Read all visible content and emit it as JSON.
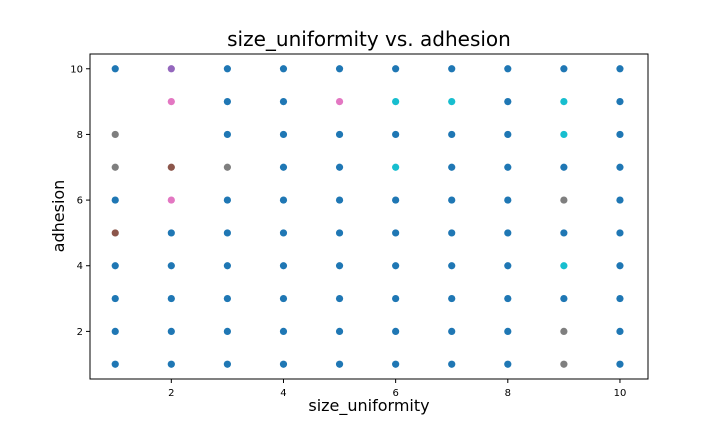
{
  "chart_data": {
    "type": "scatter",
    "title": "size_uniformity vs. adhesion",
    "xlabel": "size_uniformity",
    "ylabel": "adhesion",
    "xlim": [
      0.55,
      10.5
    ],
    "ylim": [
      0.55,
      10.45
    ],
    "xticks": [
      2,
      4,
      6,
      8,
      10
    ],
    "yticks": [
      2,
      4,
      6,
      8,
      10
    ],
    "grid": false,
    "legend": "none",
    "default_color": "#1f77b4",
    "points": [
      {
        "x": 1,
        "y": 1,
        "color": "#1f77b4"
      },
      {
        "x": 1,
        "y": 2,
        "color": "#1f77b4"
      },
      {
        "x": 1,
        "y": 3,
        "color": "#1f77b4"
      },
      {
        "x": 1,
        "y": 4,
        "color": "#1f77b4"
      },
      {
        "x": 1,
        "y": 5,
        "color": "#8c564b"
      },
      {
        "x": 1,
        "y": 6,
        "color": "#1f77b4"
      },
      {
        "x": 1,
        "y": 7,
        "color": "#7f7f7f"
      },
      {
        "x": 1,
        "y": 8,
        "color": "#7f7f7f"
      },
      {
        "x": 1,
        "y": 10,
        "color": "#1f77b4"
      },
      {
        "x": 2,
        "y": 1,
        "color": "#1f77b4"
      },
      {
        "x": 2,
        "y": 2,
        "color": "#1f77b4"
      },
      {
        "x": 2,
        "y": 3,
        "color": "#1f77b4"
      },
      {
        "x": 2,
        "y": 4,
        "color": "#1f77b4"
      },
      {
        "x": 2,
        "y": 5,
        "color": "#1f77b4"
      },
      {
        "x": 2,
        "y": 6,
        "color": "#e377c2"
      },
      {
        "x": 2,
        "y": 7,
        "color": "#8c564b"
      },
      {
        "x": 2,
        "y": 9,
        "color": "#e377c2"
      },
      {
        "x": 2,
        "y": 10,
        "color": "#9467bd"
      },
      {
        "x": 3,
        "y": 1,
        "color": "#1f77b4"
      },
      {
        "x": 3,
        "y": 2,
        "color": "#1f77b4"
      },
      {
        "x": 3,
        "y": 3,
        "color": "#1f77b4"
      },
      {
        "x": 3,
        "y": 4,
        "color": "#1f77b4"
      },
      {
        "x": 3,
        "y": 5,
        "color": "#1f77b4"
      },
      {
        "x": 3,
        "y": 6,
        "color": "#1f77b4"
      },
      {
        "x": 3,
        "y": 7,
        "color": "#7f7f7f"
      },
      {
        "x": 3,
        "y": 8,
        "color": "#1f77b4"
      },
      {
        "x": 3,
        "y": 9,
        "color": "#1f77b4"
      },
      {
        "x": 3,
        "y": 10,
        "color": "#1f77b4"
      },
      {
        "x": 4,
        "y": 1,
        "color": "#1f77b4"
      },
      {
        "x": 4,
        "y": 2,
        "color": "#1f77b4"
      },
      {
        "x": 4,
        "y": 3,
        "color": "#1f77b4"
      },
      {
        "x": 4,
        "y": 4,
        "color": "#1f77b4"
      },
      {
        "x": 4,
        "y": 5,
        "color": "#1f77b4"
      },
      {
        "x": 4,
        "y": 6,
        "color": "#1f77b4"
      },
      {
        "x": 4,
        "y": 7,
        "color": "#1f77b4"
      },
      {
        "x": 4,
        "y": 8,
        "color": "#1f77b4"
      },
      {
        "x": 4,
        "y": 9,
        "color": "#1f77b4"
      },
      {
        "x": 4,
        "y": 10,
        "color": "#1f77b4"
      },
      {
        "x": 5,
        "y": 1,
        "color": "#1f77b4"
      },
      {
        "x": 5,
        "y": 2,
        "color": "#1f77b4"
      },
      {
        "x": 5,
        "y": 3,
        "color": "#1f77b4"
      },
      {
        "x": 5,
        "y": 4,
        "color": "#1f77b4"
      },
      {
        "x": 5,
        "y": 5,
        "color": "#1f77b4"
      },
      {
        "x": 5,
        "y": 6,
        "color": "#1f77b4"
      },
      {
        "x": 5,
        "y": 7,
        "color": "#1f77b4"
      },
      {
        "x": 5,
        "y": 8,
        "color": "#1f77b4"
      },
      {
        "x": 5,
        "y": 9,
        "color": "#e377c2"
      },
      {
        "x": 5,
        "y": 10,
        "color": "#1f77b4"
      },
      {
        "x": 6,
        "y": 1,
        "color": "#1f77b4"
      },
      {
        "x": 6,
        "y": 2,
        "color": "#1f77b4"
      },
      {
        "x": 6,
        "y": 3,
        "color": "#1f77b4"
      },
      {
        "x": 6,
        "y": 4,
        "color": "#1f77b4"
      },
      {
        "x": 6,
        "y": 5,
        "color": "#1f77b4"
      },
      {
        "x": 6,
        "y": 6,
        "color": "#1f77b4"
      },
      {
        "x": 6,
        "y": 7,
        "color": "#17becf"
      },
      {
        "x": 6,
        "y": 8,
        "color": "#1f77b4"
      },
      {
        "x": 6,
        "y": 9,
        "color": "#17becf"
      },
      {
        "x": 6,
        "y": 10,
        "color": "#1f77b4"
      },
      {
        "x": 7,
        "y": 1,
        "color": "#1f77b4"
      },
      {
        "x": 7,
        "y": 2,
        "color": "#1f77b4"
      },
      {
        "x": 7,
        "y": 3,
        "color": "#1f77b4"
      },
      {
        "x": 7,
        "y": 4,
        "color": "#1f77b4"
      },
      {
        "x": 7,
        "y": 5,
        "color": "#1f77b4"
      },
      {
        "x": 7,
        "y": 6,
        "color": "#1f77b4"
      },
      {
        "x": 7,
        "y": 7,
        "color": "#1f77b4"
      },
      {
        "x": 7,
        "y": 8,
        "color": "#1f77b4"
      },
      {
        "x": 7,
        "y": 9,
        "color": "#17becf"
      },
      {
        "x": 7,
        "y": 10,
        "color": "#1f77b4"
      },
      {
        "x": 8,
        "y": 1,
        "color": "#1f77b4"
      },
      {
        "x": 8,
        "y": 2,
        "color": "#1f77b4"
      },
      {
        "x": 8,
        "y": 3,
        "color": "#1f77b4"
      },
      {
        "x": 8,
        "y": 4,
        "color": "#1f77b4"
      },
      {
        "x": 8,
        "y": 5,
        "color": "#1f77b4"
      },
      {
        "x": 8,
        "y": 6,
        "color": "#1f77b4"
      },
      {
        "x": 8,
        "y": 7,
        "color": "#1f77b4"
      },
      {
        "x": 8,
        "y": 8,
        "color": "#1f77b4"
      },
      {
        "x": 8,
        "y": 9,
        "color": "#1f77b4"
      },
      {
        "x": 8,
        "y": 10,
        "color": "#1f77b4"
      },
      {
        "x": 9,
        "y": 1,
        "color": "#7f7f7f"
      },
      {
        "x": 9,
        "y": 2,
        "color": "#7f7f7f"
      },
      {
        "x": 9,
        "y": 3,
        "color": "#1f77b4"
      },
      {
        "x": 9,
        "y": 4,
        "color": "#17becf"
      },
      {
        "x": 9,
        "y": 5,
        "color": "#1f77b4"
      },
      {
        "x": 9,
        "y": 6,
        "color": "#7f7f7f"
      },
      {
        "x": 9,
        "y": 7,
        "color": "#1f77b4"
      },
      {
        "x": 9,
        "y": 8,
        "color": "#17becf"
      },
      {
        "x": 9,
        "y": 9,
        "color": "#17becf"
      },
      {
        "x": 9,
        "y": 10,
        "color": "#1f77b4"
      },
      {
        "x": 10,
        "y": 1,
        "color": "#1f77b4"
      },
      {
        "x": 10,
        "y": 2,
        "color": "#1f77b4"
      },
      {
        "x": 10,
        "y": 3,
        "color": "#1f77b4"
      },
      {
        "x": 10,
        "y": 4,
        "color": "#1f77b4"
      },
      {
        "x": 10,
        "y": 5,
        "color": "#1f77b4"
      },
      {
        "x": 10,
        "y": 6,
        "color": "#1f77b4"
      },
      {
        "x": 10,
        "y": 7,
        "color": "#1f77b4"
      },
      {
        "x": 10,
        "y": 8,
        "color": "#1f77b4"
      },
      {
        "x": 10,
        "y": 9,
        "color": "#1f77b4"
      },
      {
        "x": 10,
        "y": 10,
        "color": "#1f77b4"
      }
    ]
  }
}
